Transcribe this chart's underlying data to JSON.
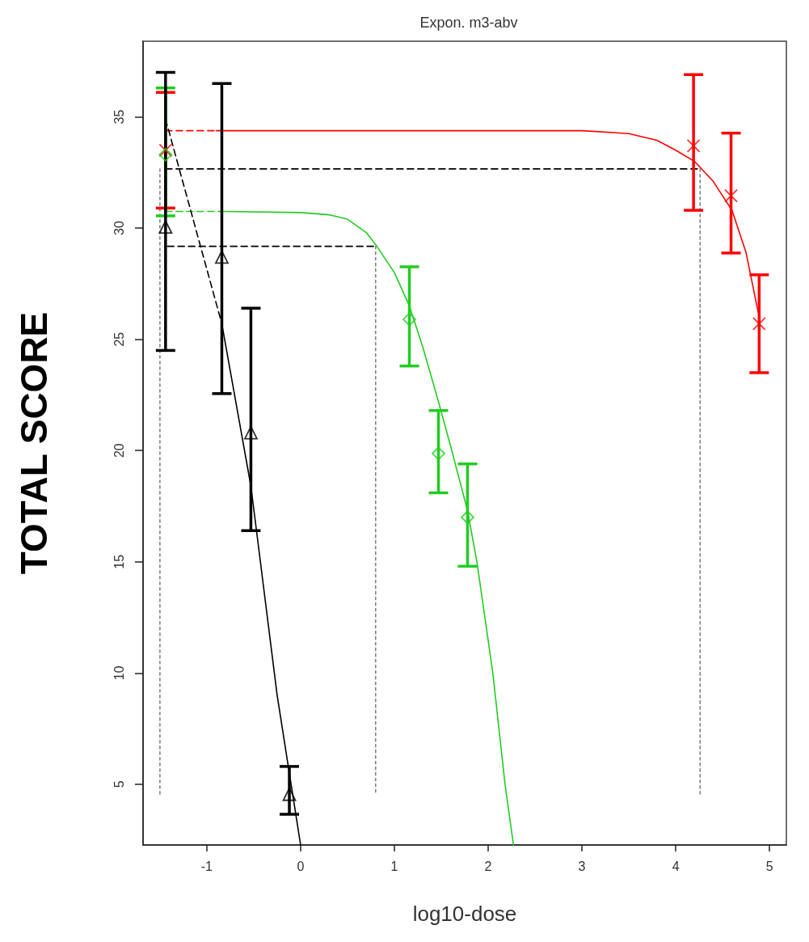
{
  "chart_data": {
    "type": "scatter",
    "title": "Expon. m3-abv",
    "xlabel": "log10-dose",
    "ylabel": "TOTAL SCORE",
    "xlim": [
      -1.68,
      5.18
    ],
    "xticks": [
      -1,
      0,
      1,
      2,
      3,
      4,
      5
    ],
    "ylim": [
      2.27,
      38.4
    ],
    "yticks": [
      5,
      10,
      15,
      20,
      25,
      30,
      35
    ],
    "grid": false,
    "series": [
      {
        "type": "line",
        "color": "#000000",
        "line_style": "dashed",
        "marker": "none",
        "x": [
          -1.44,
          4.26
        ],
        "values": [
          32.66,
          32.66
        ]
      },
      {
        "type": "line",
        "color": "#000000",
        "line_style": "dashed",
        "marker": "none",
        "x": [
          -1.42,
          0.8
        ],
        "values": [
          29.18,
          29.18
        ]
      },
      {
        "type": "line",
        "color": "#808080",
        "line_style": "dotted",
        "marker": "none",
        "x": [
          -1.5,
          -1.5
        ],
        "values": [
          32.66,
          4.5
        ]
      },
      {
        "type": "line",
        "color": "#808080",
        "line_style": "dotted",
        "marker": "none",
        "x": [
          0.8,
          0.8
        ],
        "values": [
          29.18,
          4.5
        ]
      },
      {
        "type": "line",
        "color": "#808080",
        "line_style": "dotted",
        "marker": "none",
        "x": [
          4.26,
          4.26
        ],
        "values": [
          32.66,
          4.5
        ]
      },
      {
        "type": "line",
        "color": "#ff0000",
        "line_style": "dashed",
        "marker": "none",
        "x": [
          -1.44,
          -0.9
        ],
        "values": [
          34.38,
          34.38
        ]
      },
      {
        "type": "line",
        "color": "#ff0000",
        "line_style": "solid",
        "marker": "none",
        "x": [
          -0.9,
          3.0,
          3.5,
          3.8,
          4.0,
          4.2,
          4.4,
          4.6,
          4.75,
          4.89
        ],
        "values": [
          34.38,
          34.38,
          34.25,
          33.95,
          33.5,
          33.0,
          32.1,
          30.8,
          28.9,
          26.0
        ]
      },
      {
        "type": "line",
        "color": "#22cc22",
        "line_style": "dashed",
        "marker": "none",
        "x": [
          -1.44,
          -0.82
        ],
        "values": [
          30.75,
          30.75
        ]
      },
      {
        "type": "line",
        "color": "#22cc22",
        "line_style": "solid",
        "marker": "none",
        "x": [
          -0.82,
          0,
          0.3,
          0.5,
          0.7,
          0.81,
          1.0,
          1.16,
          1.3,
          1.47,
          1.6,
          1.78,
          1.88,
          2.05,
          2.18,
          2.27
        ],
        "values": [
          30.75,
          30.7,
          30.6,
          30.4,
          29.8,
          29.2,
          28.0,
          26.5,
          24.7,
          22.2,
          20.2,
          17.3,
          15,
          10,
          5,
          2.27
        ]
      },
      {
        "type": "line",
        "color": "#000000",
        "line_style": "dashed",
        "marker": "none",
        "x": [
          -1.44,
          -0.84
        ],
        "values": [
          34.9,
          25.7
        ]
      },
      {
        "type": "line",
        "color": "#000000",
        "line_style": "solid",
        "marker": "none",
        "x": [
          -0.84,
          -0.53,
          -0.25,
          0
        ],
        "values": [
          25.7,
          18.4,
          9.0,
          2.27
        ]
      },
      {
        "color": "#ff0000",
        "marker": "cross",
        "x": [
          -1.44,
          4.19,
          4.59,
          4.89
        ],
        "values": [
          33.5,
          33.7,
          31.45,
          25.7
        ],
        "errors": [
          [
            30.9,
            36.1
          ],
          [
            30.8,
            36.9
          ],
          [
            28.88,
            34.27
          ],
          [
            23.5,
            27.9
          ]
        ]
      },
      {
        "color": "#22cc22",
        "marker": "diamond",
        "x": [
          -1.44,
          1.16,
          1.47,
          1.78
        ],
        "values": [
          33.3,
          25.9,
          19.87,
          17.0
        ],
        "errors": [
          [
            30.55,
            36.3
          ],
          [
            23.8,
            28.26
          ],
          [
            18.1,
            21.8
          ],
          [
            14.8,
            19.4
          ]
        ]
      },
      {
        "color": "#000000",
        "marker": "triangle",
        "x": [
          -1.44,
          -0.84,
          -0.53,
          -0.12
        ],
        "values": [
          30.05,
          28.7,
          20.8,
          4.55
        ],
        "errors": [
          [
            24.5,
            37.0
          ],
          [
            22.56,
            36.5
          ],
          [
            16.4,
            26.4
          ],
          [
            3.65,
            5.8
          ]
        ]
      }
    ]
  }
}
